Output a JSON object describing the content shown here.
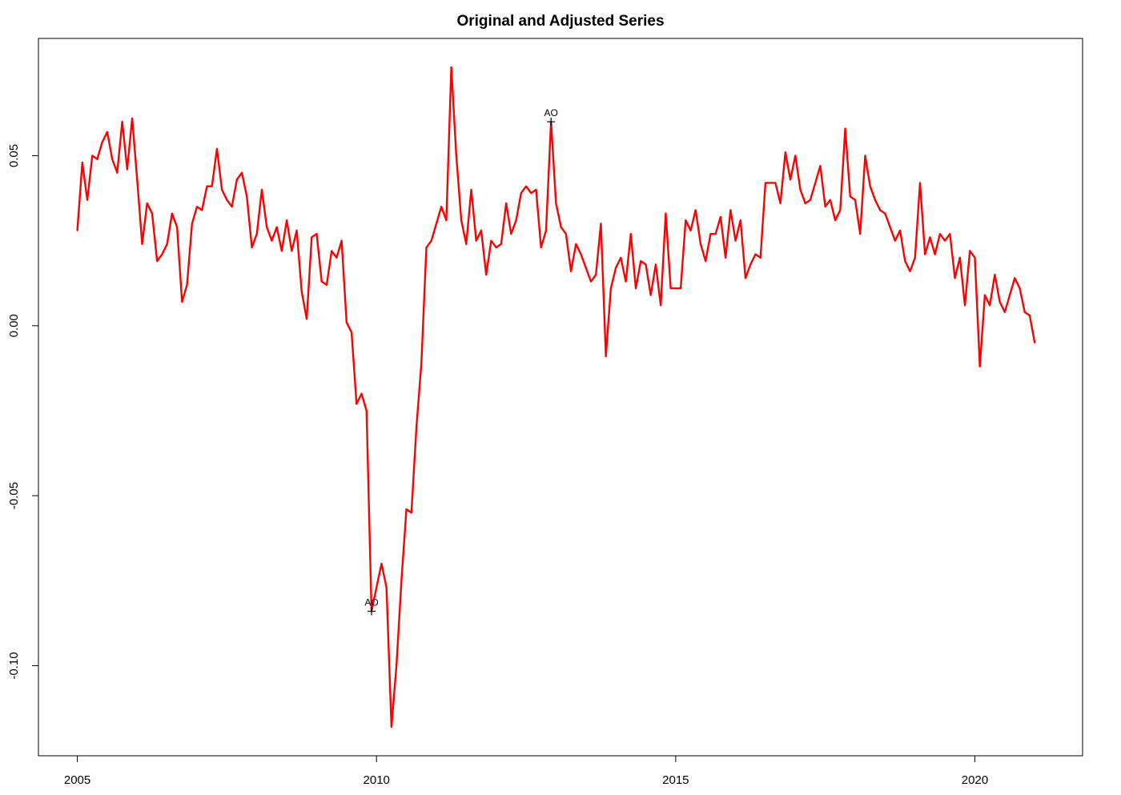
{
  "chart_data": {
    "type": "line",
    "title": "Original and Adjusted Series",
    "xlabel": "",
    "ylabel": "",
    "xlim": [
      2004.35,
      2021.8
    ],
    "ylim": [
      -0.1265,
      0.0845
    ],
    "x_ticks": [
      {
        "value": 2005,
        "label": "2005"
      },
      {
        "value": 2010,
        "label": "2010"
      },
      {
        "value": 2015,
        "label": "2015"
      },
      {
        "value": 2020,
        "label": "2020"
      }
    ],
    "y_ticks": [
      {
        "value": 0.05,
        "label": "0.05"
      },
      {
        "value": 0.0,
        "label": "0.00"
      },
      {
        "value": -0.05,
        "label": "-0.05"
      },
      {
        "value": -0.1,
        "label": "-0.10"
      }
    ],
    "grid": false,
    "frequency": "monthly",
    "start": 2005,
    "series": [
      {
        "color": "#ff0000",
        "values": [
          0.028,
          0.048,
          0.037,
          0.05,
          0.049,
          0.054,
          0.057,
          0.049,
          0.045,
          0.06,
          0.046,
          0.061,
          0.043,
          0.024,
          0.036,
          0.033,
          0.019,
          0.021,
          0.024,
          0.033,
          0.029,
          0.007,
          0.012,
          0.03,
          0.035,
          0.034,
          0.041,
          0.041,
          0.052,
          0.04,
          0.037,
          0.035,
          0.043,
          0.045,
          0.038,
          0.023,
          0.027,
          0.04,
          0.029,
          0.025,
          0.029,
          0.022,
          0.031,
          0.022,
          0.028,
          0.01,
          0.002,
          0.026,
          0.027,
          0.013,
          0.012,
          0.022,
          0.02,
          0.025,
          0.001,
          -0.002,
          -0.023,
          -0.02,
          -0.025,
          -0.084,
          -0.077,
          -0.07,
          -0.077,
          -0.118,
          -0.1,
          -0.075,
          -0.054,
          -0.055,
          -0.03,
          -0.011,
          0.023,
          0.025,
          0.03,
          0.035,
          0.031,
          0.076,
          0.05,
          0.031,
          0.024,
          0.04,
          0.025,
          0.028,
          0.015,
          0.025,
          0.023,
          0.024,
          0.036,
          0.027,
          0.031,
          0.039,
          0.041,
          0.039,
          0.04,
          0.023,
          0.028,
          0.06,
          0.036,
          0.029,
          0.027,
          0.016,
          0.024,
          0.021,
          0.017,
          0.013,
          0.015,
          0.03,
          -0.009,
          0.011,
          0.017,
          0.02,
          0.013,
          0.027,
          0.011,
          0.019,
          0.018,
          0.009,
          0.018,
          0.006,
          0.033,
          0.011,
          0.011,
          0.011,
          0.031,
          0.028,
          0.034,
          0.024,
          0.019,
          0.027,
          0.027,
          0.032,
          0.02,
          0.034,
          0.025,
          0.031,
          0.014,
          0.018,
          0.021,
          0.02,
          0.042,
          0.042,
          0.042,
          0.036,
          0.051,
          0.043,
          0.05,
          0.04,
          0.036,
          0.037,
          0.042,
          0.047,
          0.035,
          0.037,
          0.031,
          0.034,
          0.058,
          0.038,
          0.037,
          0.027,
          0.05,
          0.041,
          0.037,
          0.034,
          0.033,
          0.029,
          0.025,
          0.028,
          0.019,
          0.016,
          0.02,
          0.042,
          0.021,
          0.026,
          0.021,
          0.027,
          0.025,
          0.027,
          0.014,
          0.02,
          0.006,
          0.022,
          0.02,
          -0.012,
          0.009,
          0.006,
          0.015,
          0.007,
          0.004,
          0.009,
          0.014,
          0.011,
          0.004,
          0.003,
          -0.005
        ]
      }
    ],
    "annotations": [
      {
        "x": 2009.917,
        "y": -0.084,
        "marker": "+",
        "text": "AO"
      },
      {
        "x": 2012.917,
        "y": 0.06,
        "marker": "+",
        "text": "AO"
      }
    ]
  }
}
